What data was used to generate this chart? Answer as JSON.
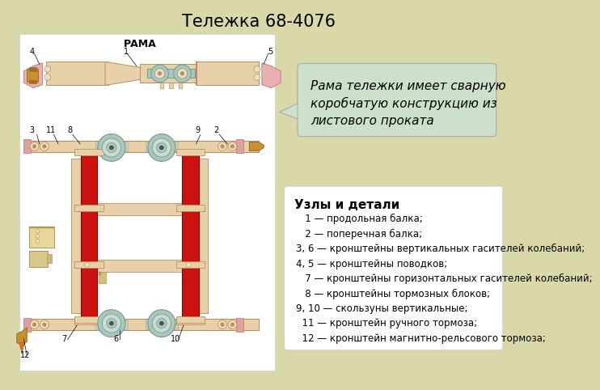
{
  "title": "Тележка 68-4076",
  "title_fontsize": 15,
  "slide_bg": "#d8d8a8",
  "white_bg": "#ffffff",
  "callout_text": "Рама тележки имеет сварную\nкоробчатую конструкцию из\nлистового проката",
  "callout_bg": "#cce0cc",
  "callout_border": "#aaaaaa",
  "callout_fontsize": 11,
  "legend_title": "Узлы и детали",
  "legend_items": [
    "   1 — продольная балка;",
    "   2 — поперечная балка;",
    "3, 6 — кронштейны вертикальных гасителей колебаний;",
    "4, 5 — кронштейны поводков;",
    "   7 — кронштейны горизонтальных гасителей колебаний;",
    "   8 — кронштейны тормозных блоков;",
    "9, 10 — скользуны вертикальные;",
    "  11 — кронштейн ручного тормоза;",
    "  12 — кронштейн магнитно-рельсового тормоза;"
  ],
  "legend_fontsize": 8.5,
  "beam_color": "#e8d0a8",
  "beam_dark": "#b89060",
  "beam_light": "#f0e0c0",
  "red_color": "#cc1111",
  "teal_color": "#a8c8b8",
  "teal_dark": "#789898",
  "pink_color": "#e8b0b0",
  "gold_color": "#c89030",
  "gold_dark": "#a07020"
}
